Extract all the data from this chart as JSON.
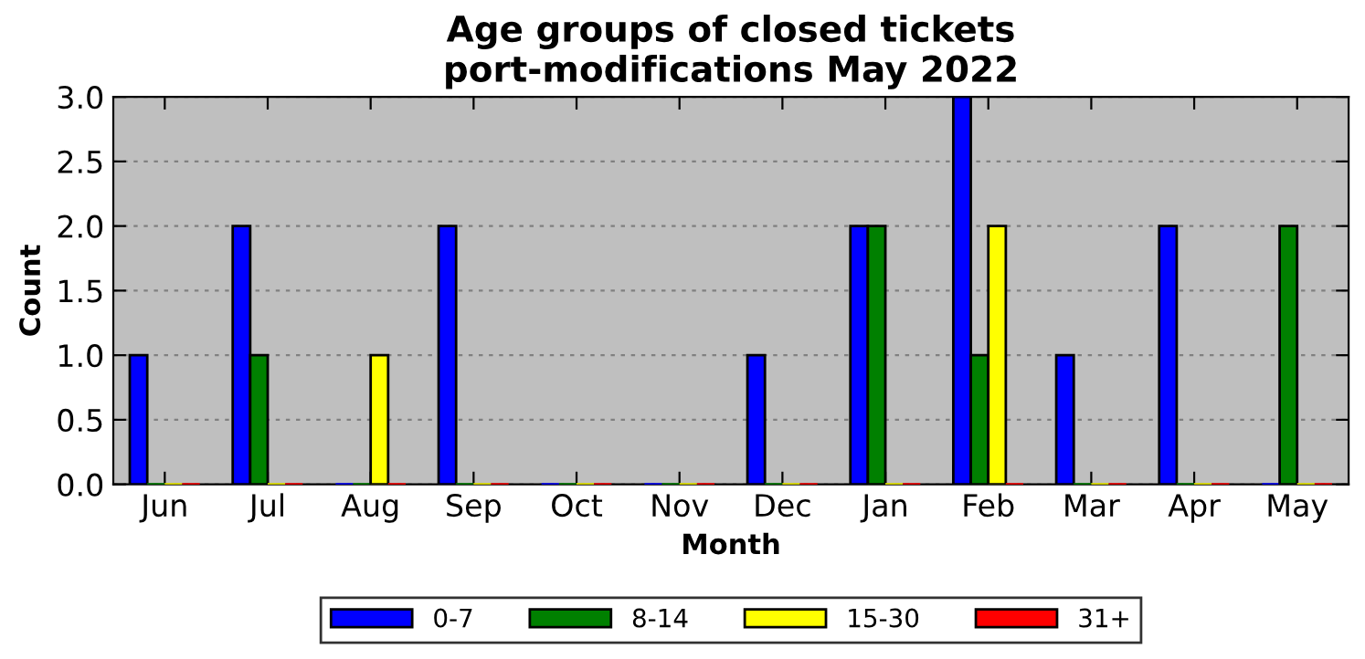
{
  "chart_data": {
    "type": "bar",
    "title": "Age groups of closed tickets\nport-modifications May 2022",
    "xlabel": "Month",
    "ylabel": "Count",
    "categories": [
      "Jun",
      "Jul",
      "Aug",
      "Sep",
      "Oct",
      "Nov",
      "Dec",
      "Jan",
      "Feb",
      "Mar",
      "Apr",
      "May"
    ],
    "series": [
      {
        "name": "0-7",
        "color": "#0000ff",
        "values": [
          1,
          2,
          0,
          2,
          0,
          0,
          1,
          2,
          3,
          1,
          2,
          0
        ]
      },
      {
        "name": "8-14",
        "color": "#008000",
        "values": [
          0,
          1,
          0,
          0,
          0,
          0,
          0,
          2,
          1,
          0,
          0,
          2
        ]
      },
      {
        "name": "15-30",
        "color": "#ffff00",
        "values": [
          0,
          0,
          1,
          0,
          0,
          0,
          0,
          0,
          2,
          0,
          0,
          0
        ]
      },
      {
        "name": "31+",
        "color": "#ff0000",
        "values": [
          0,
          0,
          0,
          0,
          0,
          0,
          0,
          0,
          0,
          0,
          0,
          0
        ]
      }
    ],
    "ylim": [
      0,
      3
    ],
    "yticks": [
      {
        "value": 0,
        "label": "0.0"
      },
      0.5,
      {
        "value": 1,
        "label": "1.0"
      },
      1.5,
      {
        "value": 2,
        "label": "2.0"
      },
      2.5,
      {
        "value": 3,
        "label": "3.0"
      }
    ],
    "grid": "y",
    "legend": "bottom"
  }
}
